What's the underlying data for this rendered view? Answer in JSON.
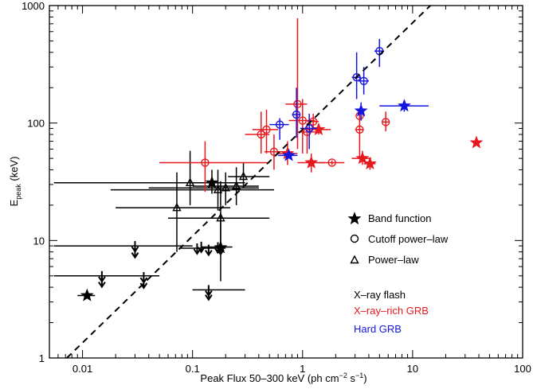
{
  "chart_data": {
    "type": "scatter",
    "xlabel": "Peak Flux 50–300 keV (ph cm",
    "xlabel_sup1": "−2",
    "xlabel_mid": " s",
    "xlabel_sup2": "−1",
    "xlabel_end": ")",
    "ylabel": "E",
    "ylabel_sub": "peak",
    "ylabel_unit": " (keV)",
    "x_scale": "log",
    "y_scale": "log",
    "xlim": [
      0.005,
      100
    ],
    "ylim": [
      1,
      1000
    ],
    "x_ticks": [
      {
        "value": 0.01,
        "label": "0.01"
      },
      {
        "value": 0.1,
        "label": "0.1"
      },
      {
        "value": 1,
        "label": "1"
      },
      {
        "value": 10,
        "label": "10"
      },
      {
        "value": 100,
        "label": "100"
      }
    ],
    "y_ticks": [
      {
        "value": 1,
        "label": "1"
      },
      {
        "value": 10,
        "label": "10"
      },
      {
        "value": 100,
        "label": "100"
      },
      {
        "value": 1000,
        "label": "1000"
      }
    ],
    "grid": false,
    "reference_line": {
      "style": "dashed",
      "from": [
        0.0072,
        1
      ],
      "to": [
        14.5,
        1000
      ]
    },
    "legend": {
      "placement": "right",
      "markers": [
        {
          "symbol": "star",
          "label": "Band function"
        },
        {
          "symbol": "circle",
          "label": "Cutoff power–law"
        },
        {
          "symbol": "triangle",
          "label": "Power–law"
        }
      ],
      "classes": [
        {
          "label": "X–ray flash",
          "color": "#000000"
        },
        {
          "label": "X–ray–rich GRB",
          "color": "#e8191e"
        },
        {
          "label": "Hard GRB",
          "color": "#1515e0"
        }
      ]
    },
    "series": [
      {
        "class_index": 0,
        "color": "#000000",
        "points": [
          {
            "x": 0.011,
            "y": 3.4,
            "marker": "star",
            "xerr": [
              0.009,
              0.013
            ]
          },
          {
            "x": 0.015,
            "y": 5.0,
            "marker": "arrow",
            "xerr": [
              0.0055,
              0.05
            ]
          },
          {
            "x": 0.015,
            "y": 4.5,
            "marker": "arrow"
          },
          {
            "x": 0.03,
            "y": 9.0,
            "marker": "arrow",
            "xerr": [
              0.0055,
              0.1
            ]
          },
          {
            "x": 0.03,
            "y": 8.0,
            "marker": "arrow"
          },
          {
            "x": 0.036,
            "y": 4.9,
            "marker": "arrow"
          },
          {
            "x": 0.036,
            "y": 4.4,
            "marker": "arrow"
          },
          {
            "x": 0.14,
            "y": 3.8,
            "marker": "arrow",
            "xerr": [
              0.1,
              0.3
            ]
          },
          {
            "x": 0.14,
            "y": 3.5,
            "marker": "arrow"
          },
          {
            "x": 0.11,
            "y": 8.6,
            "marker": "arrow",
            "xerr": [
              0.075,
              0.2
            ]
          },
          {
            "x": 0.14,
            "y": 8.4,
            "marker": "arrow"
          },
          {
            "x": 0.12,
            "y": 8.9,
            "marker": "arrow"
          },
          {
            "x": 0.17,
            "y": 8.8,
            "marker": "arrow",
            "xerr": [
              0.12,
              0.23
            ]
          },
          {
            "x": 0.18,
            "y": 8.5,
            "marker": "arrow"
          },
          {
            "x": 0.18,
            "y": 8.7,
            "marker": "star",
            "yerr": [
              4.5,
              17
            ]
          },
          {
            "x": 0.18,
            "y": 15.5,
            "marker": "triangle",
            "xerr": [
              0.06,
              0.5
            ],
            "yerr": [
              8,
              32
            ]
          },
          {
            "x": 0.072,
            "y": 19,
            "marker": "triangle",
            "xerr": [
              0.02,
              0.22
            ],
            "yerr": [
              8,
              38
            ]
          },
          {
            "x": 0.095,
            "y": 31,
            "marker": "triangle",
            "xerr": [
              0.0055,
              0.3
            ],
            "yerr": [
              20,
              58
            ]
          },
          {
            "x": 0.15,
            "y": 31,
            "marker": "star",
            "xerr": [
              0.12,
              0.2
            ],
            "yerr": [
              25,
              40
            ]
          },
          {
            "x": 0.17,
            "y": 27,
            "marker": "triangle",
            "xerr": [
              0.018,
              0.55
            ],
            "yerr": [
              18,
              40
            ]
          },
          {
            "x": 0.2,
            "y": 28,
            "marker": "triangle",
            "xerr": [
              0.04,
              0.4
            ],
            "yerr": [
              20,
              38
            ]
          },
          {
            "x": 0.25,
            "y": 29,
            "marker": "triangle",
            "xerr": [
              0.1,
              0.4
            ],
            "yerr": [
              20,
              42
            ]
          },
          {
            "x": 0.29,
            "y": 35,
            "marker": "triangle",
            "xerr": [
              0.21,
              0.5
            ],
            "yerr": [
              28,
              46
            ]
          }
        ]
      },
      {
        "class_index": 1,
        "color": "#e8191e",
        "points": [
          {
            "x": 0.13,
            "y": 46,
            "marker": "circle",
            "xerr": [
              0.05,
              0.5
            ],
            "yerr": [
              26,
              70
            ]
          },
          {
            "x": 0.42,
            "y": 80,
            "marker": "circle",
            "xerr": [
              0.3,
              0.5
            ],
            "yerr": [
              55,
              125
            ]
          },
          {
            "x": 0.47,
            "y": 88,
            "marker": "circle",
            "xerr": [
              0.35,
              0.6
            ],
            "yerr": [
              55,
              130
            ]
          },
          {
            "x": 0.55,
            "y": 57,
            "marker": "circle",
            "xerr": [
              0.45,
              0.7
            ],
            "yerr": [
              40,
              80
            ]
          },
          {
            "x": 0.73,
            "y": 55,
            "marker": "star",
            "xerr": [
              0.6,
              0.9
            ],
            "yerr": [
              44,
              70
            ]
          },
          {
            "x": 0.9,
            "y": 145,
            "marker": "circle",
            "xerr": [
              0.7,
              1.1
            ],
            "yerr": [
              60,
              780
            ]
          },
          {
            "x": 1.0,
            "y": 105,
            "marker": "circle",
            "xerr": [
              0.75,
              1.3
            ],
            "yerr": [
              55,
              160
            ]
          },
          {
            "x": 1.1,
            "y": 84,
            "marker": "circle",
            "xerr": [
              0.9,
              1.4
            ],
            "yerr": [
              55,
              100
            ]
          },
          {
            "x": 1.2,
            "y": 46,
            "marker": "star",
            "xerr": [
              0.9,
              1.6
            ],
            "yerr": [
              38,
              55
            ]
          },
          {
            "x": 1.25,
            "y": 103,
            "marker": "circle",
            "xerr": [
              1.1,
              1.4
            ],
            "yerr": [
              90,
              120
            ]
          },
          {
            "x": 1.4,
            "y": 88,
            "marker": "star",
            "xerr": [
              1.1,
              1.8
            ],
            "yerr": [
              80,
              96
            ]
          },
          {
            "x": 1.85,
            "y": 46,
            "marker": "circle",
            "xerr": [
              1.4,
              2.4
            ],
            "yerr": [
              44,
              48
            ]
          },
          {
            "x": 3.3,
            "y": 88,
            "marker": "circle",
            "xerr": [
              3.0,
              3.6
            ],
            "yerr": [
              50,
              125
            ]
          },
          {
            "x": 3.3,
            "y": 115,
            "marker": "circle",
            "yerr": [
              110,
              130
            ]
          },
          {
            "x": 3.5,
            "y": 50,
            "marker": "star",
            "xerr": [
              2.8,
              4.2
            ],
            "yerr": [
              44,
              58
            ]
          },
          {
            "x": 4.1,
            "y": 45,
            "marker": "star",
            "xerr": [
              3.6,
              4.6
            ],
            "yerr": [
              40,
              51
            ]
          },
          {
            "x": 5.7,
            "y": 102,
            "marker": "circle",
            "xerr": [
              5.3,
              6.1
            ],
            "yerr": [
              85,
              125
            ]
          },
          {
            "x": 38,
            "y": 68,
            "marker": "star"
          }
        ]
      },
      {
        "class_index": 2,
        "color": "#1515e0",
        "points": [
          {
            "x": 0.62,
            "y": 97,
            "marker": "circle",
            "xerr": [
              0.5,
              0.75
            ],
            "yerr": [
              72,
              110
            ]
          },
          {
            "x": 0.75,
            "y": 53,
            "marker": "star",
            "xerr": [
              0.6,
              0.9
            ]
          },
          {
            "x": 0.88,
            "y": 118,
            "marker": "circle",
            "xerr": [
              0.8,
              0.95
            ],
            "yerr": [
              75,
              200
            ]
          },
          {
            "x": 1.15,
            "y": 90,
            "marker": "circle",
            "xerr": [
              0.95,
              1.35
            ],
            "yerr": [
              60,
              120
            ]
          },
          {
            "x": 3.1,
            "y": 245,
            "marker": "circle",
            "xerr": [
              2.8,
              3.4
            ],
            "yerr": [
              160,
              400
            ]
          },
          {
            "x": 3.4,
            "y": 127,
            "marker": "star",
            "yerr": [
              105,
              150
            ]
          },
          {
            "x": 3.6,
            "y": 228,
            "marker": "circle",
            "xerr": [
              3.2,
              4.0
            ],
            "yerr": [
              175,
              300
            ]
          },
          {
            "x": 5.0,
            "y": 410,
            "marker": "circle",
            "xerr": [
              4.5,
              5.5
            ],
            "yerr": [
              300,
              520
            ]
          },
          {
            "x": 8.4,
            "y": 140,
            "marker": "star",
            "xerr": [
              5.0,
              14.0
            ],
            "yerr": [
              125,
              155
            ]
          }
        ]
      }
    ]
  }
}
